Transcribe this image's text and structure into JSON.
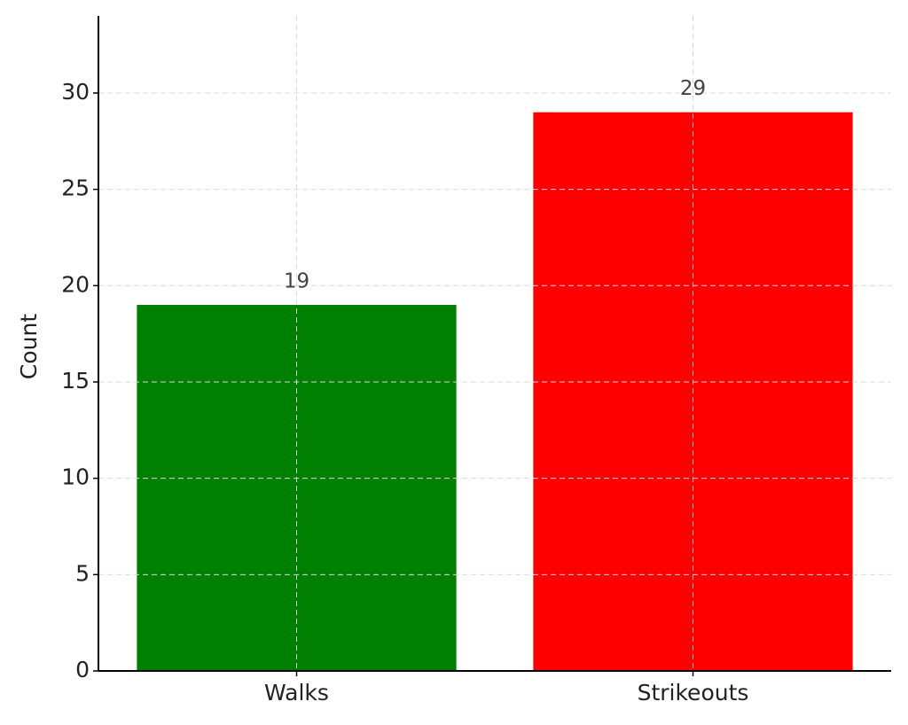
{
  "chart_data": {
    "type": "bar",
    "ylabel": "Count",
    "categories": [
      "Walks",
      "Strikeouts"
    ],
    "values": [
      19,
      29
    ],
    "colors": [
      "#008000",
      "#ff0000"
    ],
    "ylim": [
      0,
      34
    ],
    "yticks": [
      0,
      5,
      10,
      15,
      20,
      25,
      30
    ],
    "grid": true,
    "value_labels_shown": true
  }
}
